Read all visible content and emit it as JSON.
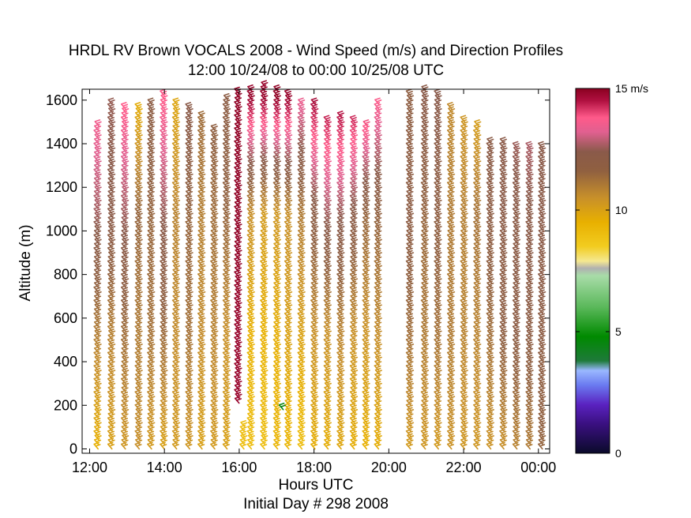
{
  "chart_data": {
    "type": "wind-barb-profile",
    "title": "HRDL RV Brown VOCALS 2008 - Wind Speed (m/s) and Direction Profiles",
    "subtitle": "12:00 10/24/08 to 00:00 10/25/08  UTC",
    "xlabel": "Hours UTC",
    "xlabel2": "Initial Day # 298  2008",
    "ylabel": "Altitude (m)",
    "xlim": [
      11.8,
      24.3
    ],
    "ylim": [
      -20,
      1650
    ],
    "x_ticks": [
      12,
      14,
      16,
      18,
      20,
      22,
      24
    ],
    "x_tick_labels": [
      "12:00",
      "14:00",
      "16:00",
      "18:00",
      "20:00",
      "22:00",
      "00:00"
    ],
    "y_ticks": [
      0,
      200,
      400,
      600,
      800,
      1000,
      1200,
      1400,
      1600
    ],
    "y_tick_labels": [
      "0",
      "200",
      "400",
      "600",
      "800",
      "1000",
      "1200",
      "1400",
      "1600"
    ],
    "colorbar": {
      "range": [
        0,
        15
      ],
      "unit_label": "15 m/s",
      "tick_labels": [
        "0",
        "5",
        "10"
      ],
      "tick_values": [
        0,
        5,
        10
      ],
      "stops": [
        {
          "v": 0,
          "c": "#0a0a2a"
        },
        {
          "v": 1.2,
          "c": "#3a1080"
        },
        {
          "v": 2.0,
          "c": "#5a22c0"
        },
        {
          "v": 2.8,
          "c": "#6a7af0"
        },
        {
          "v": 3.4,
          "c": "#9ab8ff"
        },
        {
          "v": 3.8,
          "c": "#1e7a3a"
        },
        {
          "v": 4.8,
          "c": "#008a00"
        },
        {
          "v": 6.0,
          "c": "#5ab85a"
        },
        {
          "v": 7.3,
          "c": "#a8dca8"
        },
        {
          "v": 7.6,
          "c": "#b0b0b0"
        },
        {
          "v": 7.9,
          "c": "#f5e890"
        },
        {
          "v": 8.5,
          "c": "#f2cc20"
        },
        {
          "v": 9.5,
          "c": "#e8b000"
        },
        {
          "v": 10.5,
          "c": "#c8902a"
        },
        {
          "v": 11.6,
          "c": "#906040"
        },
        {
          "v": 12.4,
          "c": "#8a5a4a"
        },
        {
          "v": 13.2,
          "c": "#e06090"
        },
        {
          "v": 13.8,
          "c": "#ff5a8a"
        },
        {
          "v": 14.5,
          "c": "#b01040"
        },
        {
          "v": 15,
          "c": "#8a0020"
        }
      ]
    },
    "profiles": [
      {
        "t": 12.1,
        "top": 1490,
        "bottom": 0,
        "spd": [
          9.5,
          11.0,
          12.6,
          13.8
        ]
      },
      {
        "t": 12.47,
        "top": 1590,
        "bottom": 0,
        "spd": [
          10.0,
          10.9,
          12.3,
          12.5
        ]
      },
      {
        "t": 12.83,
        "top": 1570,
        "bottom": 0,
        "spd": [
          10.3,
          11.3,
          12.6,
          13.9
        ]
      },
      {
        "t": 13.2,
        "top": 1560,
        "bottom": 0,
        "spd": [
          10.5,
          11.0,
          11.5,
          9.5
        ]
      },
      {
        "t": 13.53,
        "top": 1580,
        "bottom": 0,
        "spd": [
          10.2,
          11.2,
          11.5,
          12.0
        ]
      },
      {
        "t": 13.87,
        "top": 1620,
        "bottom": 0,
        "spd": [
          10.0,
          11.4,
          12.5,
          13.8
        ]
      },
      {
        "t": 14.2,
        "top": 1590,
        "bottom": 0,
        "spd": [
          10.2,
          10.6,
          10.8,
          9.8
        ]
      },
      {
        "t": 14.55,
        "top": 1570,
        "bottom": 0,
        "spd": [
          10.3,
          11.2,
          11.5,
          12.4
        ]
      },
      {
        "t": 14.88,
        "top": 1520,
        "bottom": 0,
        "spd": [
          10.0,
          10.6,
          10.9,
          11.4
        ]
      },
      {
        "t": 15.22,
        "top": 1460,
        "bottom": 0,
        "spd": [
          10.2,
          10.8,
          11.3,
          11.8
        ]
      },
      {
        "t": 15.55,
        "top": 1600,
        "bottom": 0,
        "spd": [
          10.0,
          10.5,
          11.5,
          12.0
        ]
      },
      {
        "t": 15.85,
        "top": 1640,
        "bottom": 210,
        "spd": [
          14.8,
          14.8,
          14.9,
          14.9
        ]
      },
      {
        "t": 16.0,
        "top": 100,
        "bottom": 0,
        "spd": [
          9.0,
          9.0,
          9.0,
          9.0
        ]
      },
      {
        "t": 16.2,
        "top": 1640,
        "bottom": 0,
        "spd": [
          9.0,
          9.5,
          10.5,
          14.8
        ]
      },
      {
        "t": 16.55,
        "top": 1660,
        "bottom": 0,
        "spd": [
          9.0,
          9.5,
          10.2,
          14.8
        ]
      },
      {
        "t": 16.9,
        "top": 1650,
        "bottom": 0,
        "spd": [
          9.3,
          9.6,
          10.3,
          14.9
        ]
      },
      {
        "t": 17.2,
        "top": 1620,
        "bottom": 0,
        "spd": [
          9.3,
          10.0,
          10.5,
          14.8
        ]
      },
      {
        "t": 17.55,
        "top": 1590,
        "bottom": 0,
        "spd": [
          9.0,
          10.0,
          11.0,
          13.5
        ]
      },
      {
        "t": 17.9,
        "top": 1580,
        "bottom": 0,
        "spd": [
          9.6,
          10.5,
          12.0,
          14.7
        ]
      },
      {
        "t": 18.25,
        "top": 1500,
        "bottom": 0,
        "spd": [
          9.6,
          10.5,
          12.6,
          14.7
        ]
      },
      {
        "t": 18.6,
        "top": 1520,
        "bottom": 0,
        "spd": [
          9.8,
          10.8,
          12.5,
          14.8
        ]
      },
      {
        "t": 18.95,
        "top": 1500,
        "bottom": 0,
        "spd": [
          9.6,
          10.5,
          12.2,
          14.7
        ]
      },
      {
        "t": 19.28,
        "top": 1480,
        "bottom": 0,
        "spd": [
          9.5,
          10.4,
          11.5,
          14.6
        ]
      },
      {
        "t": 19.6,
        "top": 1580,
        "bottom": 0,
        "spd": [
          9.6,
          10.6,
          11.6,
          13.8
        ]
      },
      {
        "t": 20.45,
        "top": 1630,
        "bottom": 0,
        "spd": [
          10.2,
          11.3,
          12.0,
          11.8
        ]
      },
      {
        "t": 20.85,
        "top": 1640,
        "bottom": 0,
        "spd": [
          10.3,
          11.0,
          11.5,
          12.3
        ]
      },
      {
        "t": 21.2,
        "top": 1620,
        "bottom": 0,
        "spd": [
          10.2,
          11.2,
          11.8,
          12.4
        ]
      },
      {
        "t": 21.55,
        "top": 1560,
        "bottom": 0,
        "spd": [
          10.4,
          11.0,
          11.0,
          10.6
        ]
      },
      {
        "t": 21.9,
        "top": 1510,
        "bottom": 0,
        "spd": [
          10.3,
          10.8,
          10.9,
          10.2
        ]
      },
      {
        "t": 22.25,
        "top": 1490,
        "bottom": 0,
        "spd": [
          10.3,
          10.8,
          11.2,
          9.8
        ]
      },
      {
        "t": 22.6,
        "top": 1400,
        "bottom": 0,
        "spd": [
          10.4,
          11.3,
          12.0,
          12.3
        ]
      },
      {
        "t": 22.95,
        "top": 1400,
        "bottom": 0,
        "spd": [
          10.5,
          11.8,
          12.2,
          12.4
        ]
      },
      {
        "t": 23.3,
        "top": 1380,
        "bottom": 0,
        "spd": [
          10.8,
          12.0,
          12.2,
          12.8
        ]
      },
      {
        "t": 23.65,
        "top": 1390,
        "bottom": 0,
        "spd": [
          11.0,
          12.0,
          12.3,
          13.0
        ]
      },
      {
        "t": 23.98,
        "top": 1380,
        "bottom": 0,
        "spd": [
          11.5,
          12.0,
          12.3,
          12.4
        ]
      }
    ],
    "isolated_barbs": [
      {
        "t": 17.05,
        "alt": 180,
        "spd": 4.5
      }
    ],
    "barb_direction": "from south-southeast"
  }
}
